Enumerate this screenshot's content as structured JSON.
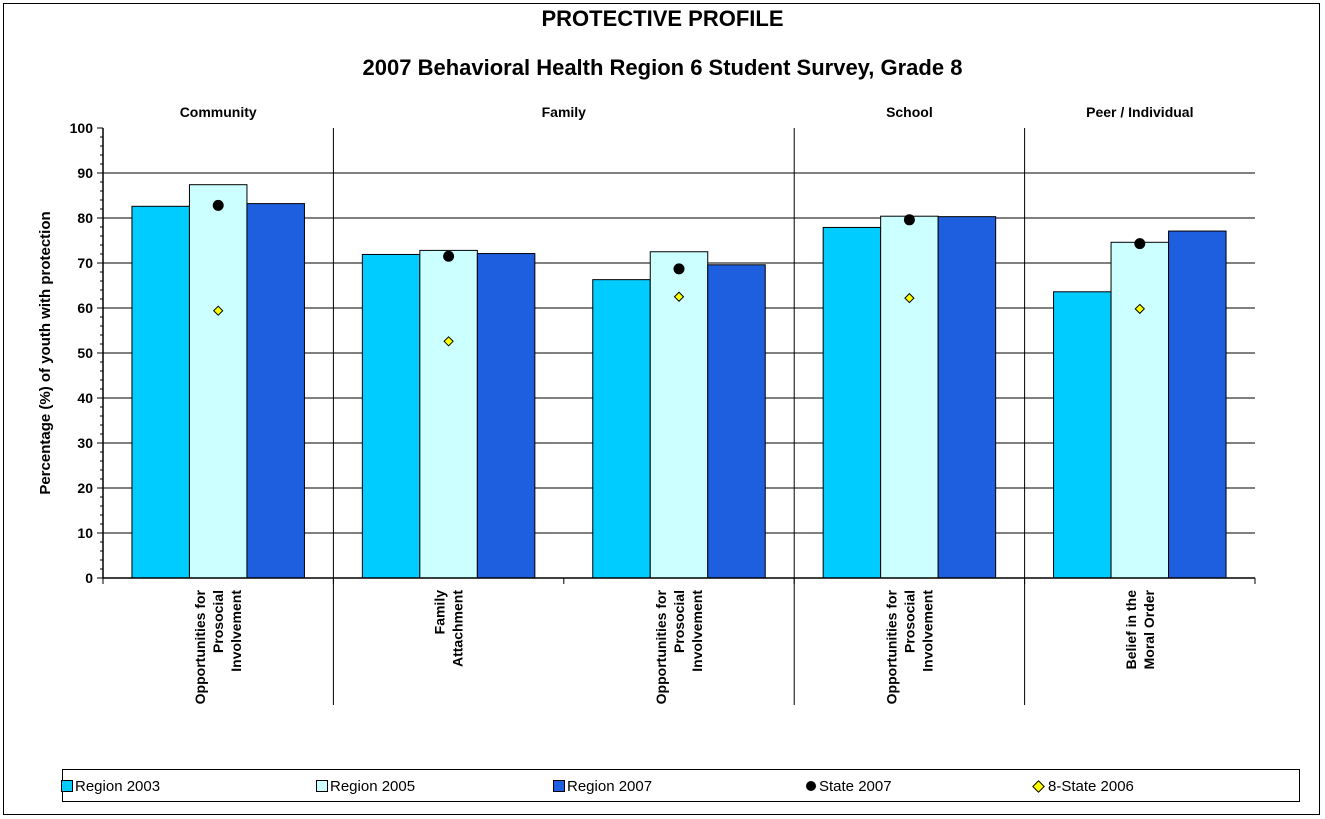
{
  "chart_data": {
    "type": "bar",
    "title": "PROTECTIVE PROFILE",
    "subtitle": "2007 Behavioral Health Region 6 Student Survey, Grade 8",
    "ylabel": "Percentage (%) of youth with protection",
    "ylim": [
      0,
      100
    ],
    "yticks": [
      "0",
      "10",
      "20",
      "30",
      "40",
      "50",
      "60",
      "70",
      "80",
      "90",
      "100"
    ],
    "grid": true,
    "domains": [
      {
        "name": "Community",
        "count": 1
      },
      {
        "name": "Family",
        "count": 2
      },
      {
        "name": "School",
        "count": 1
      },
      {
        "name": "Peer / Individual",
        "count": 1
      }
    ],
    "categories": [
      [
        "Opportunities for",
        "Prosocial",
        "Involvement"
      ],
      [
        "Family",
        "Attachment"
      ],
      [
        "Opportunities for",
        "Prosocial",
        "Involvement"
      ],
      [
        "Opportunities for",
        "Prosocial",
        "Involvement"
      ],
      [
        "Belief in the",
        "Moral Order"
      ]
    ],
    "series": [
      {
        "name": "Region 2003",
        "kind": "bar",
        "color": "#00ccff",
        "values": [
          82.6,
          71.9,
          66.3,
          77.9,
          63.6
        ]
      },
      {
        "name": "Region 2005",
        "kind": "bar",
        "color": "#ccffff",
        "values": [
          87.4,
          72.8,
          72.5,
          80.4,
          74.6
        ]
      },
      {
        "name": "Region 2007",
        "kind": "bar",
        "color": "#1e5fe0",
        "values": [
          83.2,
          72.1,
          69.6,
          80.3,
          77.1
        ]
      },
      {
        "name": "State 2007",
        "kind": "circle",
        "color": "#000000",
        "values": [
          82.8,
          71.5,
          68.7,
          79.6,
          74.3
        ]
      },
      {
        "name": "8-State 2006",
        "kind": "diamond",
        "color": "#ffff00",
        "values": [
          59.4,
          52.6,
          62.5,
          62.2,
          59.8
        ]
      }
    ],
    "legend_position": "bottom"
  }
}
